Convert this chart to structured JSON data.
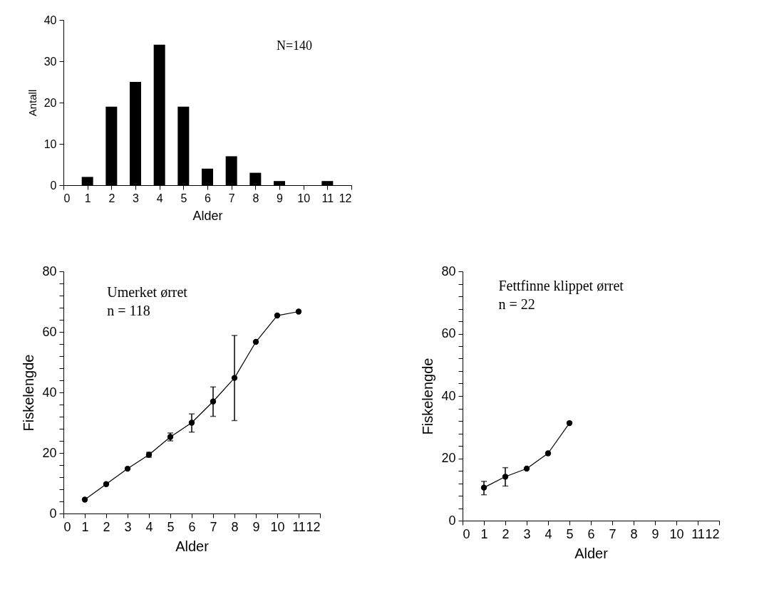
{
  "chart_data": [
    {
      "type": "bar",
      "xlabel": "Alder",
      "ylabel": "Antall",
      "annotations": [
        "N=140"
      ],
      "x": [
        1,
        2,
        3,
        4,
        5,
        6,
        7,
        8,
        9,
        10,
        11
      ],
      "values": [
        2,
        19,
        25,
        34,
        19,
        4,
        7,
        3,
        1,
        0,
        1
      ],
      "color": "#000000",
      "xlim": [
        0,
        12
      ],
      "xticks": [
        0,
        1,
        2,
        3,
        4,
        5,
        6,
        7,
        8,
        9,
        10,
        11,
        12
      ],
      "ylim": [
        0,
        40
      ],
      "yticks": [
        0,
        10,
        20,
        30,
        40
      ]
    },
    {
      "type": "line",
      "xlabel": "Alder",
      "ylabel": "Fiskelengde",
      "annotations": [
        "Umerket ørret",
        "n = 118"
      ],
      "marker": "circle",
      "line_style": "solid",
      "x": [
        1,
        2,
        3,
        4,
        5,
        6,
        7,
        8,
        9,
        10,
        11
      ],
      "values": [
        4.6,
        9.7,
        14.8,
        19.4,
        25.3,
        30.0,
        37.0,
        44.8,
        56.7,
        65.4,
        66.7
      ],
      "errors": [
        null,
        null,
        null,
        [
          18.6,
          20.2
        ],
        [
          24.0,
          26.6
        ],
        [
          26.9,
          32.9
        ],
        [
          32.1,
          41.8
        ],
        [
          30.7,
          58.8
        ],
        null,
        null,
        null
      ],
      "color": "#000000",
      "xlim": [
        0,
        12
      ],
      "xticks": [
        0,
        1,
        2,
        3,
        4,
        5,
        6,
        7,
        8,
        9,
        10,
        11,
        12
      ],
      "ylim": [
        0,
        80
      ],
      "yticks": [
        0,
        {
          "value": 4,
          "label": null
        },
        {
          "value": 8,
          "label": null
        },
        {
          "value": 12,
          "label": null
        },
        {
          "value": 16,
          "label": null
        },
        20,
        {
          "value": 24,
          "label": null
        },
        {
          "value": 28,
          "label": null
        },
        {
          "value": 32,
          "label": null
        },
        {
          "value": 36,
          "label": null
        },
        40,
        {
          "value": 44,
          "label": null
        },
        {
          "value": 48,
          "label": null
        },
        {
          "value": 52,
          "label": null
        },
        {
          "value": 56,
          "label": null
        },
        60,
        {
          "value": 64,
          "label": null
        },
        {
          "value": 68,
          "label": null
        },
        {
          "value": 72,
          "label": null
        },
        {
          "value": 76,
          "label": null
        },
        80
      ]
    },
    {
      "type": "line",
      "xlabel": "Alder",
      "ylabel": "Fiskelengde",
      "annotations": [
        "Fettfinne klippet ørret",
        "n = 22"
      ],
      "marker": "circle",
      "line_style": "solid",
      "x": [
        1,
        2,
        3,
        4,
        5
      ],
      "values": [
        10.6,
        14.1,
        16.7,
        21.6,
        31.3
      ],
      "errors": [
        [
          8.3,
          12.6
        ],
        [
          11.1,
          17.0
        ],
        null,
        null,
        null
      ],
      "color": "#000000",
      "xlim": [
        0,
        12
      ],
      "xticks": [
        0,
        1,
        2,
        3,
        4,
        5,
        6,
        7,
        8,
        9,
        10,
        11,
        12
      ],
      "ylim": [
        0,
        80
      ],
      "yticks": [
        0,
        {
          "value": 4,
          "label": null
        },
        {
          "value": 8,
          "label": null
        },
        {
          "value": 12,
          "label": null
        },
        {
          "value": 16,
          "label": null
        },
        20,
        {
          "value": 24,
          "label": null
        },
        {
          "value": 28,
          "label": null
        },
        {
          "value": 32,
          "label": null
        },
        {
          "value": 36,
          "label": null
        },
        40,
        {
          "value": 44,
          "label": null
        },
        {
          "value": 48,
          "label": null
        },
        {
          "value": 52,
          "label": null
        },
        {
          "value": 56,
          "label": null
        },
        60,
        {
          "value": 64,
          "label": null
        },
        {
          "value": 68,
          "label": null
        },
        {
          "value": 72,
          "label": null
        },
        {
          "value": 76,
          "label": null
        },
        80
      ]
    }
  ]
}
